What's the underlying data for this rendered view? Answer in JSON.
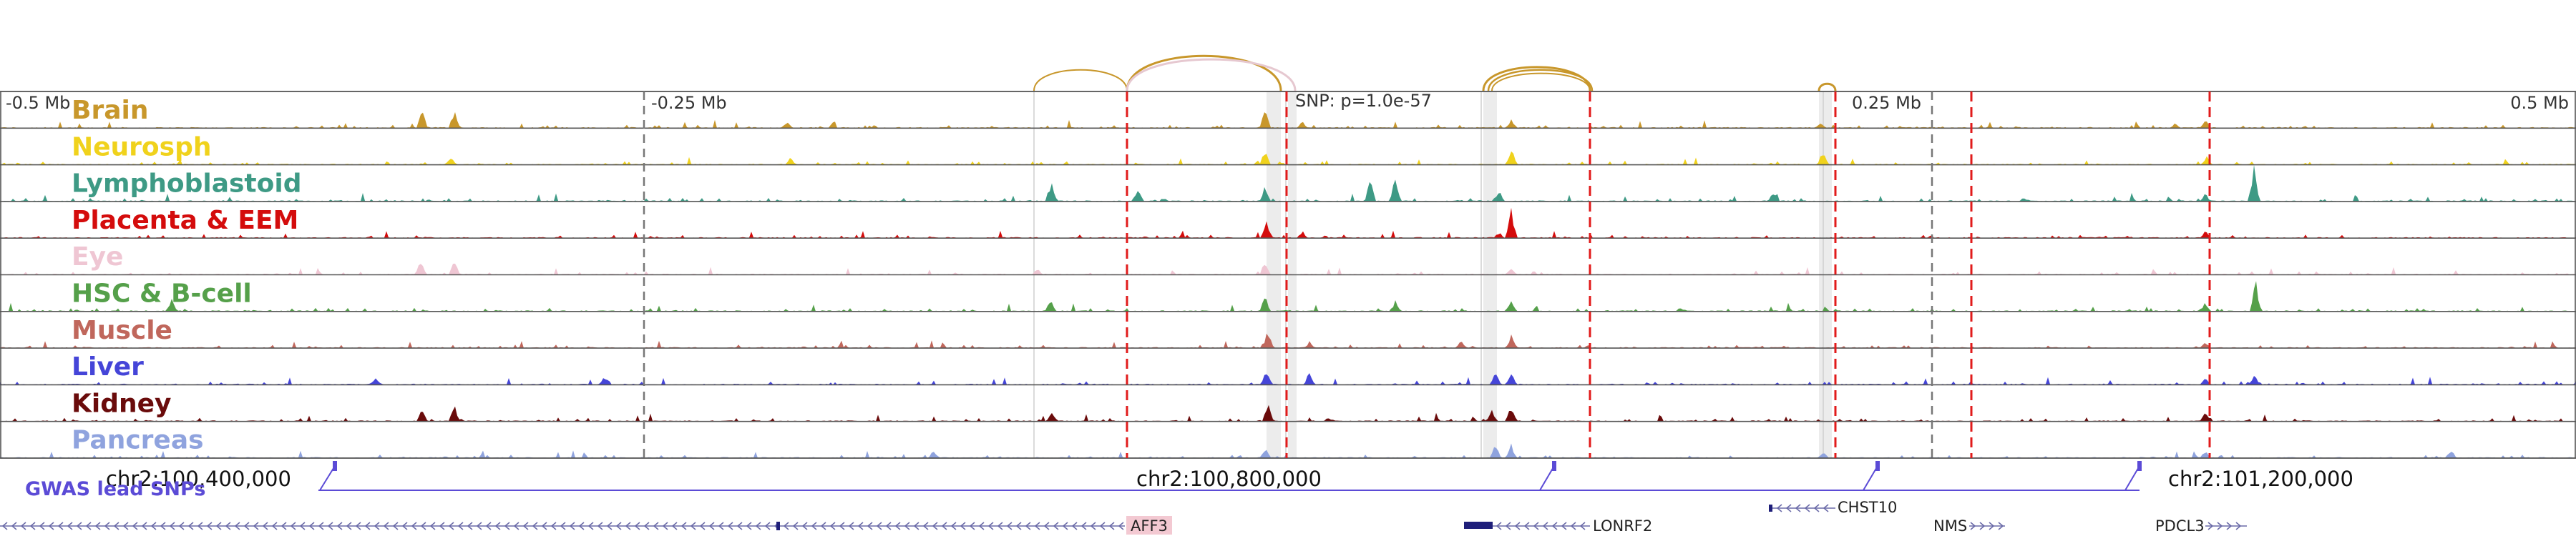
{
  "scale_labels": [
    "-0.5 Mb",
    "-0.25 Mb",
    "0.25 Mb",
    "0.5 Mb"
  ],
  "snp_label": "SNP: p=1.0e-57",
  "tracks": [
    {
      "name": "Brain",
      "color": "#c8972b"
    },
    {
      "name": "Neurosph",
      "color": "#f0d21c"
    },
    {
      "name": "Lymphoblastoid",
      "color": "#3e9a85"
    },
    {
      "name": "Placenta & EEM",
      "color": "#d40c0c"
    },
    {
      "name": "Eye",
      "color": "#efc6d3"
    },
    {
      "name": "HSC & B-cell",
      "color": "#55a04a"
    },
    {
      "name": "Muscle",
      "color": "#c0675c"
    },
    {
      "name": "Liver",
      "color": "#4545d8"
    },
    {
      "name": "Kidney",
      "color": "#6a0b0b"
    },
    {
      "name": "Pancreas",
      "color": "#8fa3de"
    }
  ],
  "coordinates": [
    "chr2:100,400,000",
    "chr2:100,800,000",
    "chr2:101,200,000"
  ],
  "gwas_label": "GWAS lead SNPs",
  "gwas_color": "#5b4bd6",
  "genes": [
    "AFF3",
    "LONRF2",
    "CHST10",
    "NMS",
    "PDCL3"
  ],
  "colors": {
    "arc": "#c8972b",
    "arc_faint": "#e6c8d0",
    "red_dash": "#e11b1b",
    "gray_dash": "#777777",
    "track_line": "#555555",
    "gene": "#1f1f7a",
    "gene_arrow": "#6a6aa8",
    "aff3_highlight": "#f3c9d2"
  }
}
